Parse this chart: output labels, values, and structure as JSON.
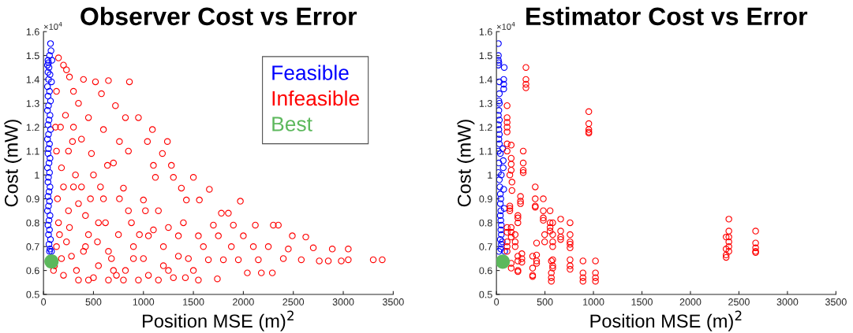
{
  "chart_data": [
    {
      "type": "scatter",
      "title": "Observer Cost vs Error",
      "xlabel": "Position MSE (m)$^{2}$",
      "ylabel": "Cost (mW)",
      "annotations": [
        "×10$^{4}$"
      ],
      "xlim": [
        0,
        3500
      ],
      "xticks": [
        0,
        500,
        1000,
        1500,
        2000,
        2500,
        3000,
        3500
      ],
      "ylim": [
        0.5,
        1.6
      ],
      "yticks": [
        0.5,
        0.6,
        0.7,
        0.8,
        0.9,
        1,
        1.1,
        1.2,
        1.3,
        1.4,
        1.5,
        1.6
      ],
      "marker": "circle",
      "grid": false,
      "legend": "top right",
      "series": [
        {
          "name": "Feasible",
          "color": "#0000ff",
          "x": [
            70,
            75,
            60,
            45,
            50,
            40,
            55,
            85,
            45,
            65,
            50,
            80,
            40,
            60,
            45,
            70,
            50,
            40,
            65,
            55,
            45,
            70,
            50,
            40,
            60,
            50,
            45,
            65,
            55,
            40,
            60,
            50,
            45,
            65,
            55,
            45,
            60,
            50,
            40,
            65,
            55,
            45,
            60,
            50,
            70,
            55,
            65,
            60,
            80
          ],
          "values": [
            1.55,
            1.52,
            1.5,
            1.48,
            1.47,
            1.46,
            1.45,
            1.48,
            1.43,
            1.42,
            1.4,
            1.39,
            1.37,
            1.35,
            1.33,
            1.31,
            1.29,
            1.27,
            1.25,
            1.23,
            1.21,
            1.19,
            1.17,
            1.15,
            1.13,
            1.11,
            1.09,
            1.07,
            1.05,
            1.03,
            1.01,
            0.99,
            0.97,
            0.95,
            0.93,
            0.91,
            0.89,
            0.87,
            0.85,
            0.83,
            0.81,
            0.79,
            0.77,
            0.75,
            0.73,
            0.71,
            0.69,
            0.68,
            0.68
          ]
        },
        {
          "name": "Infeasible",
          "color": "#ff0000",
          "x": [
            3390,
            3300,
            3050,
            3050,
            2980,
            2890,
            2850,
            2760,
            2700,
            2625,
            2580,
            2490,
            2450,
            2400,
            2350,
            2300,
            2290,
            2250,
            2180,
            2150,
            2120,
            2100,
            2040,
            2000,
            1970,
            1950,
            1900,
            1880,
            1850,
            1800,
            1780,
            1750,
            1740,
            1700,
            1660,
            1650,
            1600,
            1560,
            1550,
            1500,
            1450,
            1430,
            1400,
            1380,
            1350,
            1300,
            1280,
            1250,
            1240,
            1200,
            1190,
            1150,
            1120,
            1100,
            1090,
            1050,
            1040,
            1000,
            950,
            900,
            860,
            850,
            820,
            800,
            760,
            720,
            700,
            650,
            640,
            600,
            580,
            550,
            520,
            500,
            480,
            450,
            420,
            400,
            380,
            350,
            330,
            300,
            290,
            260,
            250,
            230,
            200,
            180,
            150,
            130,
            120,
            110,
            140,
            160,
            200,
            220,
            250,
            280,
            300,
            350,
            380,
            420,
            450,
            500,
            550,
            600,
            650,
            700,
            750,
            800,
            850,
            900,
            950,
            1000,
            1050,
            1100,
            1150,
            1200,
            1250,
            1300,
            1350,
            1420,
            1500,
            1550,
            170,
            200,
            260,
            320,
            400,
            470,
            540,
            620,
            680,
            760,
            820,
            880,
            960,
            1020,
            130,
            180,
            230,
            130,
            150,
            300,
            350,
            450,
            570,
            650,
            730,
            100
          ],
          "values": [
            0.645,
            0.645,
            0.645,
            0.69,
            0.64,
            0.69,
            0.64,
            0.64,
            0.695,
            0.74,
            0.645,
            0.745,
            0.69,
            0.65,
            0.79,
            0.79,
            0.59,
            0.7,
            0.59,
            0.645,
            0.79,
            0.7,
            0.59,
            0.745,
            0.89,
            0.645,
            0.79,
            0.7,
            0.84,
            0.645,
            0.84,
            0.745,
            0.565,
            0.79,
            0.94,
            0.645,
            0.7,
            0.895,
            0.745,
            0.99,
            0.65,
            0.895,
            0.8,
            0.945,
            0.745,
            0.99,
            1.04,
            0.6,
            1.14,
            0.7,
            1.09,
            0.85,
            0.99,
            1.04,
            1.19,
            0.745,
            1.14,
            0.895,
            1.24,
            0.65,
            1.39,
            0.85,
            1.24,
            0.945,
            1.14,
            1.29,
            0.6,
            1.395,
            1.04,
            1.19,
            1.34,
            0.8,
            1.39,
            0.57,
            1.09,
            1.24,
            0.7,
            1.4,
            0.95,
            1.3,
            0.6,
            1.35,
            1.14,
            1.41,
            0.85,
            1.44,
            1.46,
            1.03,
            1.49,
            1.35,
            1.2,
            0.62,
            0.9,
            0.75,
            0.58,
            1.25,
            1.1,
            0.66,
            0.95,
            0.56,
            1.15,
            0.83,
            0.56,
            1.0,
            0.62,
            0.9,
            0.56,
            1.05,
            0.75,
            0.56,
            1.1,
            0.7,
            0.56,
            0.65,
            0.58,
            0.77,
            0.56,
            0.62,
            0.78,
            0.57,
            0.66,
            0.57,
            0.6,
            0.56,
            1.2,
            0.95,
            0.78,
            1.0,
            0.68,
            0.9,
            0.72,
            0.8,
            0.65,
            0.9,
            0.6,
            0.8,
            0.75,
            0.85,
            0.7,
            0.65,
            0.72,
            1.1,
            0.8,
            1.2,
            0.88,
            0.75,
            0.95,
            0.68,
            0.58,
            0.6
          ]
        },
        {
          "name": "Best",
          "type": "bubble",
          "color": "#5cb85c",
          "x": [
            80
          ],
          "values": [
            0.638
          ],
          "sizes": [
            1
          ]
        }
      ]
    },
    {
      "type": "scatter",
      "title": "Estimator Cost vs Error",
      "xlabel": "Position MSE (m)$^{2}$",
      "ylabel": "Cost (mW)",
      "annotations": [
        "×10$^{4}$"
      ],
      "xlim": [
        0,
        3500
      ],
      "xticks": [
        0,
        500,
        1000,
        1500,
        2000,
        2500,
        3000,
        3500
      ],
      "ylim": [
        0.5,
        1.6
      ],
      "yticks": [
        0.5,
        0.6,
        0.7,
        0.8,
        0.9,
        1,
        1.1,
        1.2,
        1.3,
        1.4,
        1.5,
        1.6
      ],
      "marker": "circle",
      "grid": false,
      "series": [
        {
          "color": "#0000ff",
          "x": [
            20,
            20,
            20,
            25,
            20,
            80,
            30,
            75,
            75,
            75,
            30,
            25,
            30,
            25,
            20,
            30,
            20,
            25,
            30,
            25,
            30,
            20,
            65,
            40,
            70,
            25,
            70,
            20,
            50,
            30,
            75,
            35,
            40,
            45,
            40,
            80,
            45,
            40,
            45,
            50,
            45,
            50,
            40,
            60,
            50,
            45,
            25,
            85
          ],
          "values": [
            1.55,
            1.5,
            1.48,
            1.47,
            1.46,
            1.45,
            1.39,
            1.4,
            1.38,
            1.36,
            1.34,
            1.31,
            1.3,
            1.27,
            1.25,
            1.23,
            1.21,
            1.19,
            1.17,
            1.15,
            1.13,
            1.1,
            1.11,
            1.09,
            1.06,
            1.05,
            1.03,
            1.01,
            1.0,
            0.98,
            0.94,
            0.95,
            0.92,
            0.9,
            0.88,
            0.86,
            0.85,
            0.83,
            0.81,
            0.79,
            0.77,
            0.75,
            0.73,
            0.72,
            0.71,
            0.69,
            0.68,
            0.68
          ]
        },
        {
          "color": "#ff0000",
          "x": [
            304,
            304,
            304,
            304,
            110,
            110,
            110,
            110,
            110,
            952,
            952,
            952,
            952,
            952,
            276,
            276,
            276,
            276,
            110,
            110,
            152,
            152,
            152,
            152,
            138,
            160,
            160,
            400,
            400,
            400,
            400,
            483,
            483,
            483,
            483,
            553,
            553,
            553,
            553,
            662,
            662,
            662,
            662,
            759,
            759,
            759,
            759,
            759,
            580,
            580,
            580,
            580,
            497,
            497,
            414,
            373,
            373,
            373,
            373,
            414,
            414,
            414,
            566,
            566,
            566,
            566,
            580,
            580,
            580,
            759,
            759,
            759,
            892,
            892,
            892,
            892,
            1021,
            1021,
            1021,
            1021,
            262,
            262,
            262,
            221,
            221,
            221,
            221,
            152,
            152,
            110,
            110,
            110,
            193,
            193,
            193,
            221,
            221,
            221,
            138,
            138,
            138,
            248,
            248,
            248,
            110,
            110,
            152,
            152,
            152,
            2396,
            2396,
            2396,
            2396,
            2396,
            2396,
            2368,
            2368,
            2368,
            2368,
            2672,
            2672,
            2672,
            2672,
            2672
          ],
          "values": [
            1.45,
            1.4,
            1.38,
            1.365,
            1.29,
            1.24,
            1.22,
            1.2,
            1.18,
            1.265,
            1.215,
            1.19,
            1.18,
            1.175,
            1.1,
            1.05,
            1.02,
            1.01,
            1.13,
            1.1,
            1.125,
            1.07,
            1.045,
            1.02,
            1.0,
            0.97,
            0.935,
            0.95,
            0.9,
            0.87,
            0.865,
            0.9,
            0.85,
            0.82,
            0.81,
            0.85,
            0.8,
            0.78,
            0.765,
            0.815,
            0.765,
            0.74,
            0.73,
            0.8,
            0.75,
            0.72,
            0.71,
            0.695,
            0.8,
            0.75,
            0.72,
            0.7,
            0.75,
            0.72,
            0.715,
            0.66,
            0.61,
            0.58,
            0.575,
            0.665,
            0.64,
            0.63,
            0.64,
            0.59,
            0.57,
            0.555,
            0.645,
            0.62,
            0.61,
            0.645,
            0.62,
            0.605,
            0.64,
            0.59,
            0.57,
            0.555,
            0.64,
            0.59,
            0.57,
            0.555,
            0.67,
            0.65,
            0.635,
            0.66,
            0.64,
            0.6,
            0.595,
            0.63,
            0.61,
            0.72,
            0.7,
            0.68,
            0.75,
            0.72,
            0.7,
            0.83,
            0.82,
            0.8,
            0.86,
            0.85,
            0.87,
            0.91,
            0.89,
            0.88,
            0.78,
            0.76,
            0.78,
            0.76,
            0.74,
            0.815,
            0.765,
            0.74,
            0.72,
            0.7,
            0.68,
            0.74,
            0.69,
            0.665,
            0.655,
            0.765,
            0.715,
            0.695,
            0.68,
            0.675
          ]
        },
        {
          "type": "bubble",
          "color": "#5cb85c",
          "x": [
            65
          ],
          "values": [
            0.637
          ],
          "sizes": [
            1
          ]
        }
      ]
    }
  ]
}
